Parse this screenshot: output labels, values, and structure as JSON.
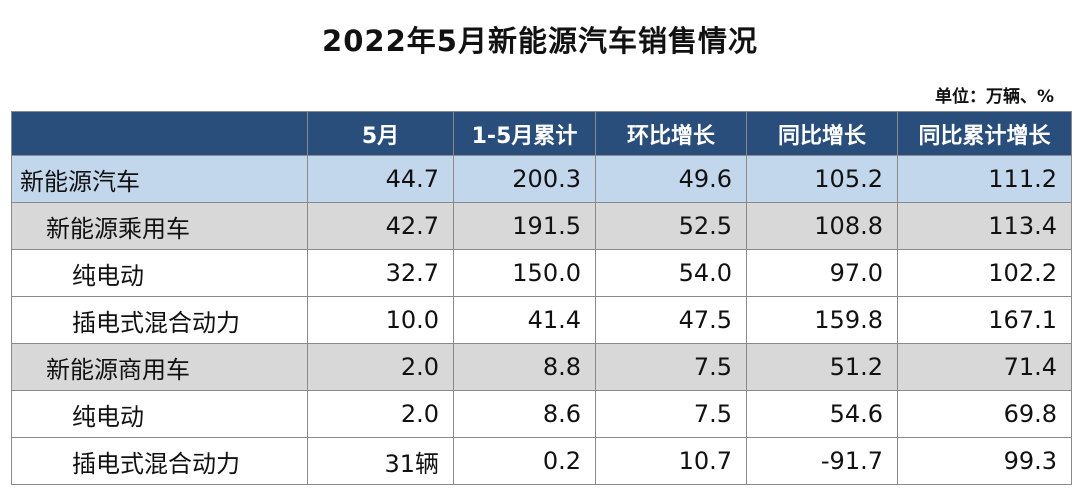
{
  "title": "2022年5月新能源汽车销售情况",
  "unit_note": "单位：万辆、%",
  "table": {
    "headers": [
      "",
      "5月",
      "1-5月累计",
      "环比增长",
      "同比增长",
      "同比累计增长"
    ],
    "rows": [
      {
        "label": "新能源汽车",
        "cells": [
          "44.7",
          "200.3",
          "49.6",
          "105.2",
          "111.2"
        ]
      },
      {
        "label": "新能源乘用车",
        "cells": [
          "42.7",
          "191.5",
          "52.5",
          "108.8",
          "113.4"
        ]
      },
      {
        "label": "纯电动",
        "cells": [
          "32.7",
          "150.0",
          "54.0",
          "97.0",
          "102.2"
        ]
      },
      {
        "label": "插电式混合动力",
        "cells": [
          "10.0",
          "41.4",
          "47.5",
          "159.8",
          "167.1"
        ]
      },
      {
        "label": "新能源商用车",
        "cells": [
          "2.0",
          "8.8",
          "7.5",
          "51.2",
          "71.4"
        ]
      },
      {
        "label": "纯电动",
        "cells": [
          "2.0",
          "8.6",
          "7.5",
          "54.6",
          "69.8"
        ]
      },
      {
        "label": "插电式混合动力",
        "cells": [
          "31辆",
          "0.2",
          "10.7",
          "-91.7",
          "99.3"
        ]
      }
    ]
  },
  "colors": {
    "header_bg": "#2a4e7c",
    "total_row_bg": "#c3d7ec",
    "category_row_bg": "#d8d8d8"
  }
}
